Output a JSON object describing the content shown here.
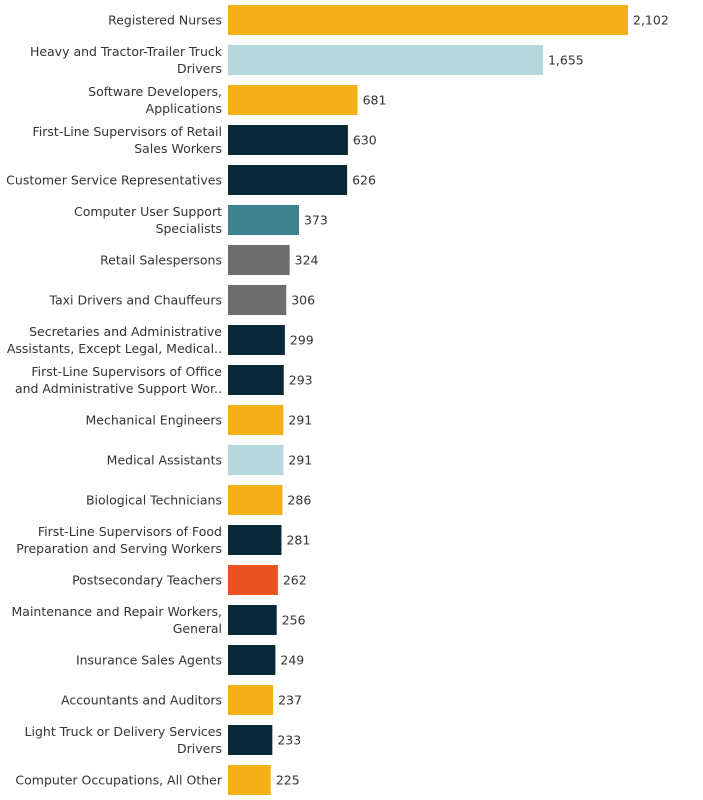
{
  "chart_data": {
    "type": "bar",
    "orientation": "horizontal",
    "title": "",
    "xlabel": "",
    "ylabel": "",
    "grid": false,
    "legend": "none",
    "xlim": [
      0,
      2102
    ],
    "categories": [
      [
        "Registered Nurses"
      ],
      [
        "Heavy and Tractor-Trailer Truck",
        "Drivers"
      ],
      [
        "Software Developers,",
        "Applications"
      ],
      [
        "First-Line Supervisors of Retail",
        "Sales Workers"
      ],
      [
        "Customer Service Representatives"
      ],
      [
        "Computer User Support",
        "Specialists"
      ],
      [
        "Retail Salespersons"
      ],
      [
        "Taxi Drivers and Chauffeurs"
      ],
      [
        "Secretaries and Administrative",
        "Assistants, Except Legal, Medical.."
      ],
      [
        "First-Line Supervisors of Office",
        "and Administrative Support Wor.."
      ],
      [
        "Mechanical Engineers"
      ],
      [
        "Medical Assistants"
      ],
      [
        "Biological Technicians"
      ],
      [
        "First-Line Supervisors of Food",
        "Preparation and Serving Workers"
      ],
      [
        "Postsecondary Teachers"
      ],
      [
        "Maintenance and Repair Workers,",
        "General"
      ],
      [
        "Insurance Sales Agents"
      ],
      [
        "Accountants and Auditors"
      ],
      [
        "Light Truck or Delivery Services",
        "Drivers"
      ],
      [
        "Computer Occupations, All Other"
      ]
    ],
    "values": [
      2102,
      1655,
      681,
      630,
      626,
      373,
      324,
      306,
      299,
      293,
      291,
      291,
      286,
      281,
      262,
      256,
      249,
      237,
      233,
      225
    ],
    "value_labels": [
      "2,102",
      "1,655",
      "681",
      "630",
      "626",
      "373",
      "324",
      "306",
      "299",
      "293",
      "291",
      "291",
      "286",
      "281",
      "262",
      "256",
      "249",
      "237",
      "233",
      "225"
    ],
    "bar_colors": [
      "#f5af19",
      "#b6d7de",
      "#f5af19",
      "#08293a",
      "#08293a",
      "#3f8390",
      "#6e6e6e",
      "#6e6e6e",
      "#08293a",
      "#08293a",
      "#f5af19",
      "#b6d7de",
      "#f5af19",
      "#08293a",
      "#ea5320",
      "#08293a",
      "#08293a",
      "#f5af19",
      "#08293a",
      "#f5af19"
    ]
  }
}
